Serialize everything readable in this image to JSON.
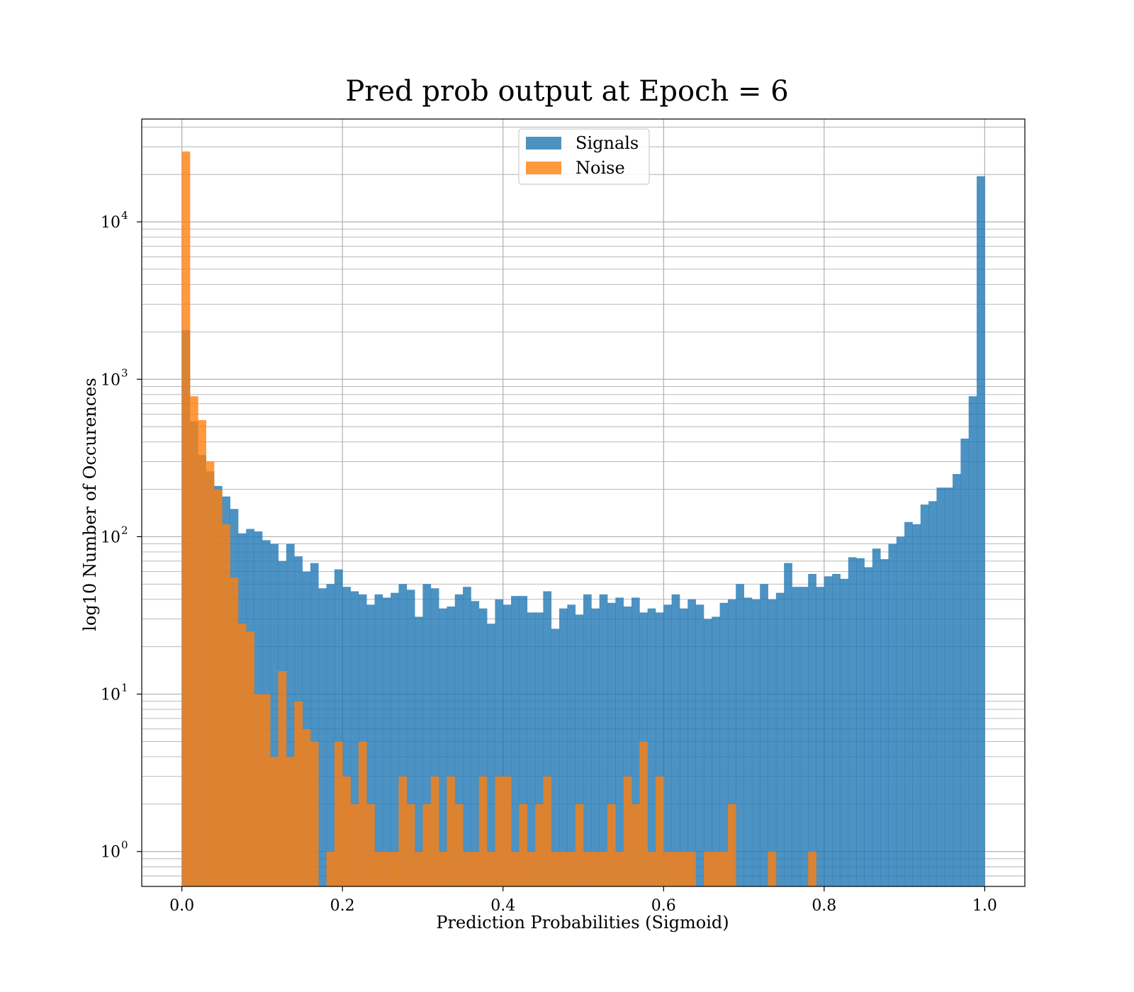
{
  "chart_data": {
    "type": "bar",
    "title": "Pred prob output at Epoch = 6",
    "xlabel": "Prediction Probabilities (Sigmoid)",
    "ylabel": "log10 Number of Occurences",
    "xlim": [
      -0.05,
      1.05
    ],
    "ylim": [
      0.6,
      45000
    ],
    "yscale": "log",
    "grid": true,
    "legend_position": "upper center",
    "x_ticks": [
      "0.0",
      "0.2",
      "0.4",
      "0.6",
      "0.8",
      "1.0"
    ],
    "y_ticks": [
      {
        "base": "10",
        "exp": "0"
      },
      {
        "base": "10",
        "exp": "1"
      },
      {
        "base": "10",
        "exp": "2"
      },
      {
        "base": "10",
        "exp": "3"
      },
      {
        "base": "10",
        "exp": "4"
      }
    ],
    "bin_edges_range": [
      0.0,
      1.0
    ],
    "bins": 100,
    "series": [
      {
        "name": "Signals",
        "color": "#1f77b4",
        "opacity": 0.8,
        "values": [
          2050,
          540,
          330,
          260,
          210,
          180,
          150,
          105,
          112,
          108,
          95,
          90,
          70,
          90,
          75,
          60,
          68,
          47,
          50,
          62,
          48,
          45,
          43,
          37,
          43,
          41,
          44,
          50,
          46,
          31,
          50,
          47,
          35,
          36,
          43,
          48,
          39,
          35,
          28,
          40,
          37,
          42,
          42,
          33,
          33,
          45,
          26,
          35,
          37,
          32,
          43,
          35,
          43,
          38,
          41,
          36,
          41,
          33,
          35,
          33,
          37,
          43,
          35,
          40,
          37,
          30,
          31,
          38,
          40,
          50,
          41,
          40,
          50,
          40,
          44,
          68,
          48,
          48,
          58,
          48,
          56,
          58,
          54,
          74,
          73,
          64,
          84,
          72,
          90,
          100,
          124,
          120,
          160,
          168,
          205,
          205,
          250,
          420,
          780,
          19500
        ]
      },
      {
        "name": "Noise",
        "color": "#ff7f0e",
        "opacity": 0.8,
        "values": [
          28000,
          780,
          550,
          300,
          200,
          120,
          55,
          28,
          25,
          10,
          10,
          4,
          14,
          4,
          9,
          6,
          5,
          0,
          1,
          5,
          3,
          2,
          5,
          2,
          1,
          1,
          1,
          3,
          2,
          1,
          2,
          3,
          1,
          3,
          2,
          1,
          1,
          3,
          1,
          3,
          3,
          1,
          2,
          1,
          2,
          3,
          1,
          1,
          1,
          2,
          1,
          1,
          1,
          2,
          1,
          3,
          2,
          5,
          1,
          3,
          1,
          1,
          1,
          1,
          0,
          1,
          1,
          1,
          2,
          0,
          0,
          0,
          0,
          1,
          0,
          0,
          0,
          0,
          1,
          0,
          0,
          0,
          0,
          0,
          0,
          0,
          0,
          0,
          0,
          0,
          0,
          0,
          0,
          0,
          0,
          0,
          0,
          0,
          0,
          0
        ]
      }
    ]
  }
}
